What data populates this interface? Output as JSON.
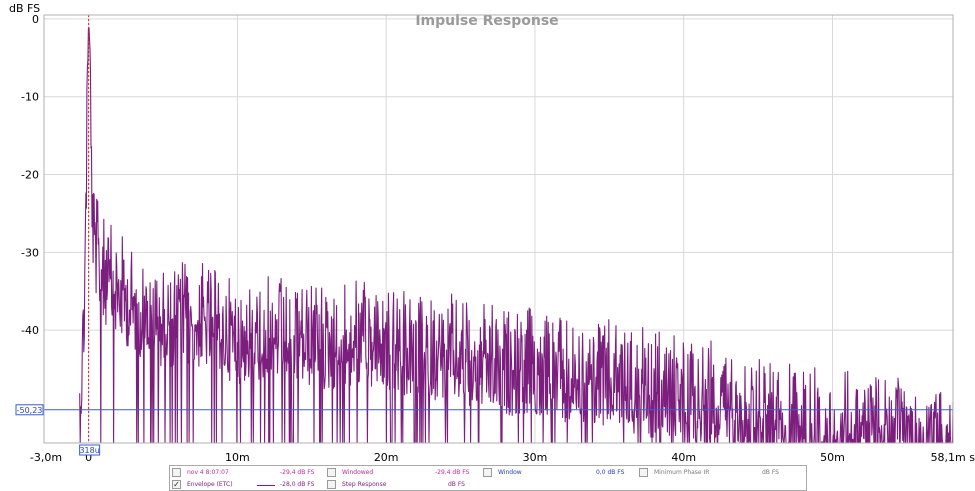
{
  "chart_data": {
    "type": "line",
    "title": "Impulse Response",
    "ylabel": "dB FS",
    "xlim": [
      -3.0,
      58.1
    ],
    "ylim": [
      -54.5,
      0.5
    ],
    "x_ticks": [
      {
        "value": -3.0,
        "label": "-3,0m"
      },
      {
        "value": 0,
        "label": "0"
      },
      {
        "value": 10,
        "label": "10m"
      },
      {
        "value": 20,
        "label": "20m"
      },
      {
        "value": 30,
        "label": "30m"
      },
      {
        "value": 40,
        "label": "40m"
      },
      {
        "value": 50,
        "label": "50m"
      },
      {
        "value": 58.1,
        "label": "58,1m s"
      }
    ],
    "y_ticks": [
      {
        "value": 0,
        "label": "0"
      },
      {
        "value": -10,
        "label": "-10"
      },
      {
        "value": -20,
        "label": "-20"
      },
      {
        "value": -30,
        "label": "-30"
      },
      {
        "value": -40,
        "label": "-40"
      }
    ],
    "grid": true,
    "cursor_y": {
      "value": -50.23,
      "label": "-50,23"
    },
    "cursor_x": {
      "value": 0,
      "label": "318u"
    },
    "series": [
      {
        "name": "Envelope (ETC)",
        "color": "#7b1e7d",
        "envelope": {
          "x": [
            -0.6,
            -0.3,
            -0.2,
            -0.1,
            0.0,
            0.1,
            0.2,
            0.3,
            0.6,
            1.0,
            2.0,
            3.0,
            4.0,
            5.0,
            6.0,
            7.0,
            8.0,
            9.0,
            10.0,
            12.0,
            14.0,
            16.0,
            18.0,
            20.0,
            22.0,
            24.0,
            26.0,
            28.0,
            30.0,
            32.0,
            34.0,
            36.0,
            38.0,
            40.0,
            42.0,
            44.0,
            46.0,
            48.0,
            50.0,
            52.0,
            54.0,
            56.0,
            58.1
          ],
          "y": [
            -42,
            -30,
            -17,
            -6,
            0,
            -3,
            -12,
            -19,
            -23,
            -25,
            -27,
            -29,
            -30,
            -31,
            -30.5,
            -31,
            -31,
            -32,
            -33,
            -32.5,
            -33,
            -34,
            -33.5,
            -34,
            -35,
            -35,
            -36,
            -37,
            -37,
            -38,
            -38,
            -39,
            -40,
            -40,
            -41,
            -42,
            -43,
            -44,
            -45,
            -45,
            -46,
            -46,
            -47
          ]
        }
      }
    ],
    "legend": {
      "rows": [
        [
          {
            "name": "nov 4 8:07:07",
            "value": "-29,4 dB FS",
            "checked": false,
            "name_color": "#c0289c",
            "value_color": "#c0289c"
          },
          {
            "name": "Windowed",
            "value": "-29,4 dB FS",
            "checked": false,
            "name_color": "#c0289c",
            "value_color": "#c0289c"
          },
          {
            "name": "Window",
            "value": "0,0 dB FS",
            "checked": false,
            "name_color": "#1a3fb5",
            "value_color": "#1a3fb5"
          },
          {
            "name": "Minimum Phase IR",
            "value": "dB FS",
            "checked": false,
            "name_color": "#7a7a7a",
            "value_color": "#7a7a7a"
          }
        ],
        [
          {
            "name": "Envelope (ETC)",
            "value": "-28,0 dB FS",
            "checked": true,
            "name_color": "#7b1e7d",
            "value_color": "#7b1e7d",
            "swatch": "#7b1e7d"
          },
          {
            "name": "Step Response",
            "value": "dB FS",
            "checked": false,
            "name_color": "#7b1e7d",
            "value_color": "#7b1e7d"
          }
        ]
      ]
    }
  }
}
